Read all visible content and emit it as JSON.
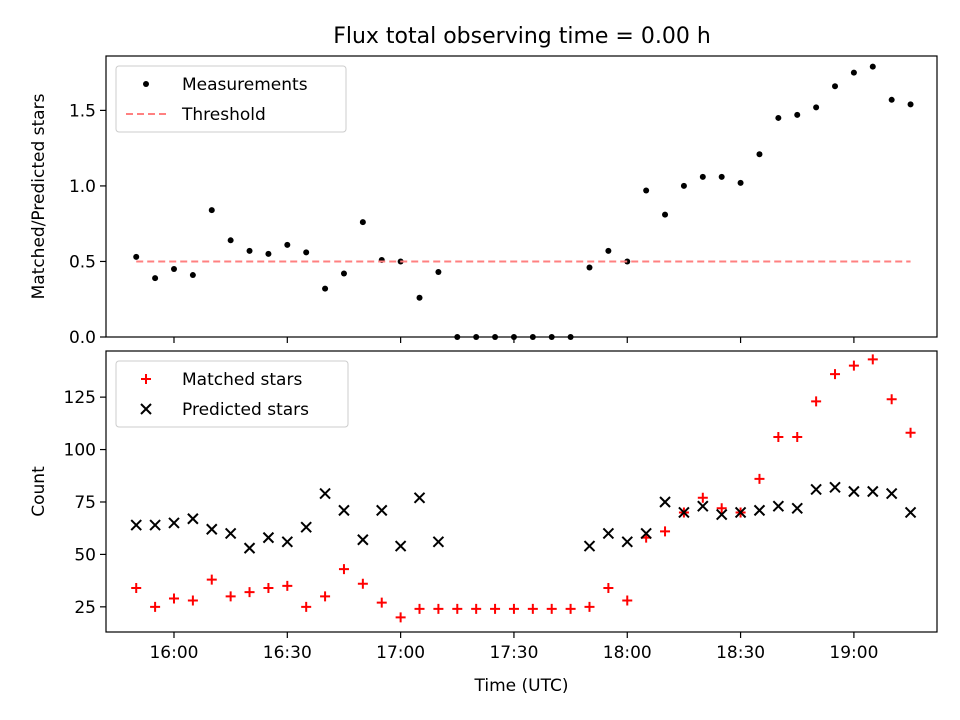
{
  "title": "Flux total observing time = 0.00 h",
  "colors": {
    "measurement": "#000000",
    "threshold": "#ff8080",
    "matched": "#ff0000",
    "predicted": "#000000"
  },
  "chart_data": [
    {
      "type": "scatter",
      "ylabel": "Matched/Predicted stars",
      "xlim": [
        "15:42",
        "19:22"
      ],
      "ylim": [
        0,
        1.86
      ],
      "yticks": [
        0.0,
        0.5,
        1.0,
        1.5
      ],
      "ytick_labels": [
        "0.0",
        "0.5",
        "1.0",
        "1.5"
      ],
      "legend_position": "upper left",
      "series": [
        {
          "name": "Measurements",
          "marker": "dot",
          "x": [
            "15:50",
            "15:55",
            "16:00",
            "16:05",
            "16:10",
            "16:15",
            "16:20",
            "16:25",
            "16:30",
            "16:35",
            "16:40",
            "16:45",
            "16:50",
            "16:55",
            "17:00",
            "17:05",
            "17:10",
            "17:15",
            "17:20",
            "17:25",
            "17:30",
            "17:35",
            "17:40",
            "17:45",
            "17:50",
            "17:55",
            "18:00",
            "18:05",
            "18:10",
            "18:15",
            "18:20",
            "18:25",
            "18:30",
            "18:35",
            "18:40",
            "18:45",
            "18:50",
            "18:55",
            "19:00",
            "19:05",
            "19:10",
            "19:15"
          ],
          "y": [
            0.53,
            0.39,
            0.45,
            0.41,
            0.84,
            0.64,
            0.57,
            0.55,
            0.61,
            0.56,
            0.32,
            0.42,
            0.76,
            0.51,
            0.5,
            0.26,
            0.43,
            0.0,
            0.0,
            0.0,
            0.0,
            0.0,
            0.0,
            0.0,
            0.46,
            0.57,
            0.5,
            0.97,
            0.81,
            1.0,
            1.06,
            1.06,
            1.02,
            1.21,
            1.45,
            1.47,
            1.52,
            1.66,
            1.75,
            1.79,
            1.57,
            1.54
          ]
        },
        {
          "name": "Threshold",
          "style": "dashed",
          "x": [
            "15:50",
            "19:15"
          ],
          "y": [
            0.5,
            0.5
          ]
        }
      ]
    },
    {
      "type": "scatter",
      "xlabel": "Time (UTC)",
      "ylabel": "Count",
      "xlim": [
        "15:42",
        "19:22"
      ],
      "ylim": [
        13,
        147
      ],
      "yticks": [
        25,
        50,
        75,
        100,
        125
      ],
      "xticks": [
        "16:00",
        "16:30",
        "17:00",
        "17:30",
        "18:00",
        "18:30",
        "19:00"
      ],
      "legend_position": "upper left",
      "series": [
        {
          "name": "Matched stars",
          "marker": "plus",
          "x": [
            "15:50",
            "15:55",
            "16:00",
            "16:05",
            "16:10",
            "16:15",
            "16:20",
            "16:25",
            "16:30",
            "16:35",
            "16:40",
            "16:45",
            "16:50",
            "16:55",
            "17:00",
            "17:05",
            "17:10",
            "17:15",
            "17:20",
            "17:25",
            "17:30",
            "17:35",
            "17:40",
            "17:45",
            "17:50",
            "17:55",
            "18:00",
            "18:05",
            "18:10",
            "18:15",
            "18:20",
            "18:25",
            "18:30",
            "18:35",
            "18:40",
            "18:45",
            "18:50",
            "18:55",
            "19:00",
            "19:05",
            "19:10",
            "19:15"
          ],
          "y": [
            34,
            25,
            29,
            28,
            38,
            30,
            32,
            34,
            35,
            25,
            30,
            43,
            36,
            27,
            20,
            24,
            24,
            24,
            24,
            24,
            24,
            24,
            24,
            24,
            25,
            34,
            28,
            58,
            61,
            70,
            77,
            72,
            70,
            86,
            106,
            106,
            123,
            136,
            140,
            143,
            124,
            108
          ]
        },
        {
          "name": "Predicted stars",
          "marker": "x",
          "x": [
            "15:50",
            "15:55",
            "16:00",
            "16:05",
            "16:10",
            "16:15",
            "16:20",
            "16:25",
            "16:30",
            "16:35",
            "16:40",
            "16:45",
            "16:50",
            "16:55",
            "17:00",
            "17:05",
            "17:10",
            "17:15",
            "17:20",
            "17:25",
            "17:30",
            "17:35",
            "17:40",
            "17:45",
            "17:50",
            "17:55",
            "18:00",
            "18:05",
            "18:10",
            "18:15",
            "18:20",
            "18:25",
            "18:30",
            "18:35",
            "18:40",
            "18:45",
            "18:50",
            "18:55",
            "19:00",
            "19:05",
            "19:10",
            "19:15"
          ],
          "y": [
            64,
            64,
            65,
            67,
            62,
            60,
            53,
            58,
            56,
            63,
            79,
            71,
            57,
            71,
            54,
            77,
            56,
            null,
            null,
            null,
            null,
            null,
            null,
            null,
            54,
            60,
            56,
            60,
            75,
            70,
            73,
            69,
            70,
            71,
            73,
            72,
            81,
            82,
            80,
            80,
            79,
            70
          ]
        }
      ]
    }
  ]
}
